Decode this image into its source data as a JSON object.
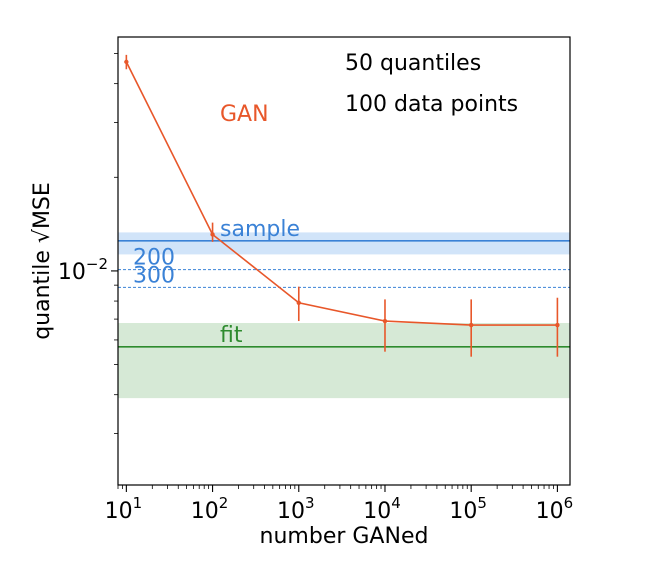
{
  "chart_data": {
    "type": "line",
    "xlabel": "number GANed",
    "ylabel": "quantile √MSE",
    "x_scale": "log",
    "y_scale": "log",
    "xlim": [
      8,
      1400000
    ],
    "ylim": [
      0.00205,
      0.0565
    ],
    "x_ticks": [
      {
        "value": 10,
        "base": "10",
        "exp": "1"
      },
      {
        "value": 100,
        "base": "10",
        "exp": "2"
      },
      {
        "value": 1000,
        "base": "10",
        "exp": "3"
      },
      {
        "value": 10000,
        "base": "10",
        "exp": "4"
      },
      {
        "value": 100000,
        "base": "10",
        "exp": "5"
      },
      {
        "value": 1000000,
        "base": "10",
        "exp": "6"
      }
    ],
    "y_ticks": [
      {
        "value": 0.01,
        "base": "10",
        "exp": "−2"
      }
    ],
    "grid": false,
    "series": [
      {
        "name": "GAN",
        "color": "#e8572a",
        "points": [
          {
            "x": 10,
            "y": 0.047,
            "err_low": 0.0445,
            "err_high": 0.0495
          },
          {
            "x": 100,
            "y": 0.0131,
            "err_low": 0.0124,
            "err_high": 0.0143
          },
          {
            "x": 1000,
            "y": 0.0079,
            "err_low": 0.0069,
            "err_high": 0.0089
          },
          {
            "x": 10000,
            "y": 0.0069,
            "err_low": 0.0055,
            "err_high": 0.0081
          },
          {
            "x": 100000,
            "y": 0.0067,
            "err_low": 0.0053,
            "err_high": 0.0081
          },
          {
            "x": 1000000,
            "y": 0.0067,
            "err_low": 0.0053,
            "err_high": 0.0082
          }
        ]
      }
    ],
    "reference_lines": [
      {
        "label": "sample",
        "y": 0.0125,
        "band": [
          0.0113,
          0.0133
        ],
        "color": "#3b82d6",
        "band_color": "#c9dff8",
        "style": "solid"
      },
      {
        "label": "200",
        "y": 0.0101,
        "color": "#3b82d6",
        "style": "dashed"
      },
      {
        "label": "300",
        "y": 0.00885,
        "color": "#3b82d6",
        "style": "dashed"
      },
      {
        "label": "fit",
        "y": 0.0057,
        "band": [
          0.0039,
          0.0068
        ],
        "color": "#2e8b2e",
        "band_color": "#cfe5cf",
        "style": "solid"
      }
    ],
    "series_label": "GAN",
    "annotations": [
      "50 quantiles",
      "100 data points"
    ]
  }
}
